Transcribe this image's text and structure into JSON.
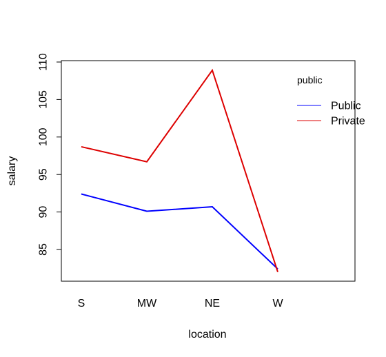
{
  "chart_data": {
    "type": "line",
    "title": "",
    "xlabel": "location",
    "ylabel": "salary",
    "categories": [
      "S",
      "MW",
      "NE",
      "W"
    ],
    "ylim": [
      81,
      111
    ],
    "yticks": [
      85,
      90,
      95,
      100,
      105,
      110
    ],
    "grid": false,
    "legend": {
      "title": "public",
      "position": "top-right"
    },
    "series": [
      {
        "name": "Public",
        "color": "#0000ff",
        "values": [
          92.4,
          90.1,
          90.7,
          82.4
        ]
      },
      {
        "name": "Private",
        "color": "#dd0000",
        "values": [
          98.7,
          96.7,
          108.9,
          82.0
        ]
      }
    ]
  }
}
